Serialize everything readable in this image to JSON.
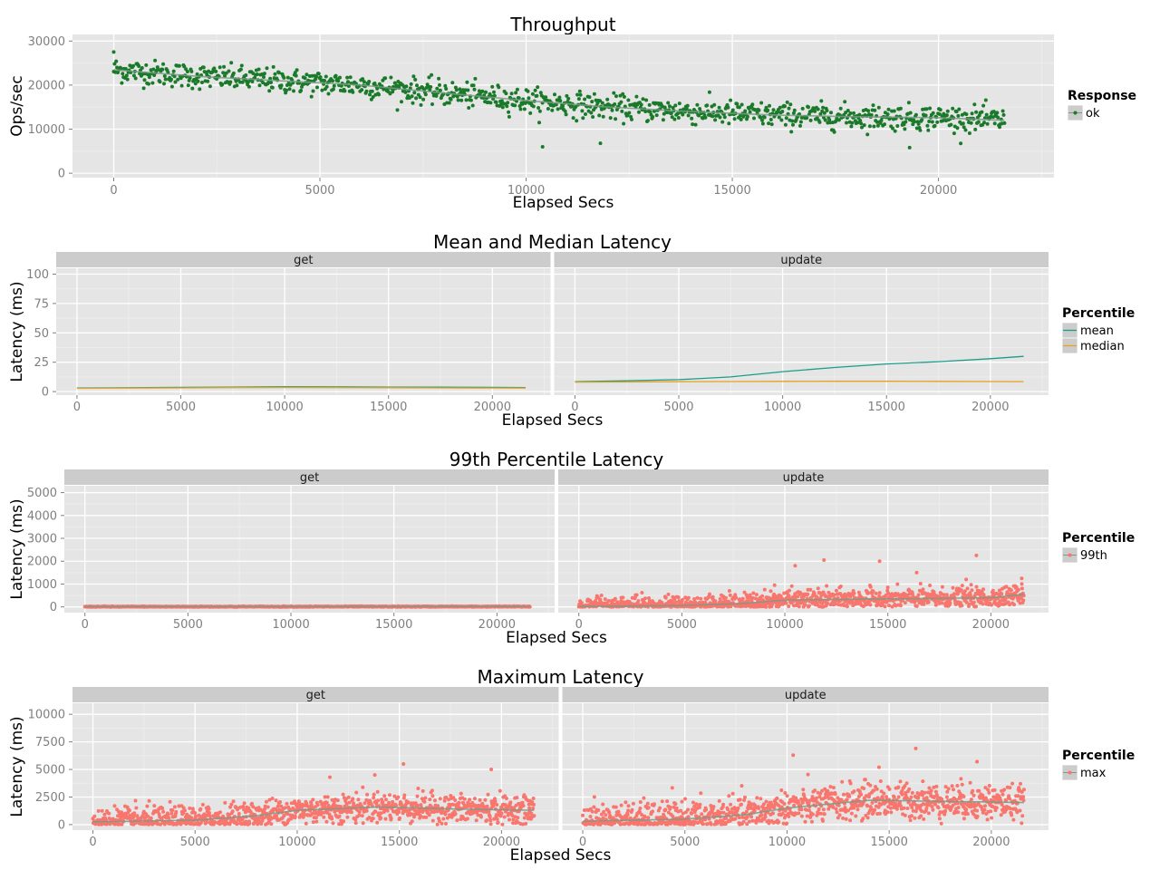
{
  "chart_data": [
    {
      "type": "scatter",
      "title": "Throughput",
      "xlabel": "Elapsed Secs",
      "ylabel": "Ops/sec",
      "xlim": [
        -1000,
        22800
      ],
      "ylim": [
        -1000,
        31500
      ],
      "x_ticks": [
        0,
        5000,
        10000,
        15000,
        20000
      ],
      "x_tick_labels": [
        "0",
        "5000",
        "10000",
        "15000",
        "20000"
      ],
      "y_ticks": [
        0,
        10000,
        20000,
        30000
      ],
      "y_tick_labels": [
        "0",
        "10000",
        "20000",
        "30000"
      ],
      "grid": true,
      "legend": {
        "title": "Response",
        "position": "right",
        "items": [
          {
            "label": "ok",
            "color": "#1a7a2a"
          }
        ]
      },
      "series": [
        {
          "name": "ok",
          "color": "#1a7a2a",
          "x_range": [
            0,
            21600
          ],
          "count": 1100,
          "trend": {
            "x": [
              0,
              2000,
              4000,
              6000,
              8000,
              10000,
              12000,
              14000,
              16000,
              18000,
              20000,
              21600
            ],
            "y": [
              23500,
              22000,
              21000,
              20000,
              18200,
              16500,
              15000,
              14000,
              13200,
              12800,
              12600,
              12000
            ]
          },
          "spread": 1400,
          "outliers": [
            {
              "x": 0,
              "y": 27500
            },
            {
              "x": 10400,
              "y": 6000
            },
            {
              "x": 11800,
              "y": 6800
            },
            {
              "x": 19300,
              "y": 5800
            }
          ]
        }
      ]
    },
    {
      "type": "line",
      "title": "Mean and Median Latency",
      "xlabel": "Elapsed Secs",
      "ylabel": "Latency (ms)",
      "facets": [
        "get",
        "update"
      ],
      "xlim": [
        -1000,
        22800
      ],
      "ylim": [
        -3,
        105
      ],
      "x_ticks": [
        0,
        5000,
        10000,
        15000,
        20000
      ],
      "x_tick_labels": [
        "0",
        "5000",
        "10000",
        "15000",
        "20000"
      ],
      "y_ticks": [
        0,
        25,
        50,
        75,
        100
      ],
      "y_tick_labels": [
        "0",
        "25",
        "50",
        "75",
        "100"
      ],
      "grid": true,
      "legend": {
        "title": "Percentile",
        "position": "right",
        "items": [
          {
            "label": "mean",
            "color": "#1a9e8a"
          },
          {
            "label": "median",
            "color": "#e8a020"
          }
        ]
      },
      "x": [
        0,
        2500,
        5000,
        7500,
        10000,
        12500,
        15000,
        17500,
        20000,
        21600
      ],
      "series": [
        {
          "facet": "get",
          "name": "mean",
          "color": "#1a9e8a",
          "values": [
            3,
            3.3,
            3.6,
            3.9,
            4.1,
            4.0,
            3.9,
            3.8,
            3.6,
            3.5
          ]
        },
        {
          "facet": "get",
          "name": "median",
          "color": "#e8a020",
          "values": [
            2.8,
            3.0,
            3.2,
            3.4,
            3.5,
            3.4,
            3.3,
            3.2,
            3.1,
            3.0
          ]
        },
        {
          "facet": "update",
          "name": "mean",
          "color": "#1a9e8a",
          "values": [
            8.5,
            9.2,
            10.2,
            12.5,
            17,
            20.5,
            23.5,
            25.5,
            28,
            30
          ]
        },
        {
          "facet": "update",
          "name": "median",
          "color": "#e8a020",
          "values": [
            8,
            8.2,
            8.4,
            8.6,
            8.7,
            8.8,
            8.8,
            8.7,
            8.6,
            8.5
          ]
        }
      ]
    },
    {
      "type": "scatter",
      "title": "99th Percentile Latency",
      "xlabel": "Elapsed Secs",
      "ylabel": "Latency (ms)",
      "facets": [
        "get",
        "update"
      ],
      "xlim": [
        -1000,
        22800
      ],
      "ylim": [
        -250,
        5300
      ],
      "x_ticks": [
        0,
        5000,
        10000,
        15000,
        20000
      ],
      "x_tick_labels": [
        "0",
        "5000",
        "10000",
        "15000",
        "20000"
      ],
      "y_ticks": [
        0,
        1000,
        2000,
        3000,
        4000,
        5000
      ],
      "y_tick_labels": [
        "0",
        "1000",
        "2000",
        "3000",
        "4000",
        "5000"
      ],
      "grid": true,
      "legend": {
        "title": "Percentile",
        "position": "right",
        "items": [
          {
            "label": "99th",
            "color": "#f8766d"
          }
        ]
      },
      "series": [
        {
          "facet": "get",
          "name": "99th",
          "color": "#f8766d",
          "x_range": [
            0,
            21600
          ],
          "count": 700,
          "trend": {
            "x": [
              0,
              21600
            ],
            "y": [
              10,
              15
            ]
          },
          "spread": 10,
          "outliers": []
        },
        {
          "facet": "update",
          "name": "99th",
          "color": "#f8766d",
          "x_range": [
            0,
            21600
          ],
          "count": 1100,
          "trend": {
            "x": [
              0,
              5000,
              8000,
              10000,
              15000,
              20000,
              21600
            ],
            "y": [
              20,
              60,
              150,
              300,
              350,
              400,
              550
            ]
          },
          "spread": 220,
          "outliers": [
            {
              "x": 10500,
              "y": 1800
            },
            {
              "x": 11900,
              "y": 2050
            },
            {
              "x": 14600,
              "y": 2000
            },
            {
              "x": 19300,
              "y": 2250
            },
            {
              "x": 21500,
              "y": 1250
            },
            {
              "x": 9500,
              "y": 950
            },
            {
              "x": 16400,
              "y": 1500
            },
            {
              "x": 18800,
              "y": 1200
            }
          ]
        }
      ]
    },
    {
      "type": "scatter",
      "title": "Maximum Latency",
      "xlabel": "Elapsed Secs",
      "ylabel": "Latency (ms)",
      "facets": [
        "get",
        "update"
      ],
      "xlim": [
        -1000,
        22800
      ],
      "ylim": [
        -500,
        11000
      ],
      "x_ticks": [
        0,
        5000,
        10000,
        15000,
        20000
      ],
      "x_tick_labels": [
        "0",
        "5000",
        "10000",
        "15000",
        "20000"
      ],
      "y_ticks": [
        0,
        2500,
        5000,
        7500,
        10000
      ],
      "y_tick_labels": [
        "0",
        "2500",
        "5000",
        "7500",
        "10000"
      ],
      "grid": true,
      "legend": {
        "title": "Percentile",
        "position": "right",
        "items": [
          {
            "label": "max",
            "color": "#f8766d"
          }
        ]
      },
      "series": [
        {
          "facet": "get",
          "name": "max",
          "color": "#f8766d",
          "x_range": [
            0,
            21600
          ],
          "count": 1100,
          "trend": {
            "x": [
              0,
              5000,
              8000,
              10000,
              14000,
              18000,
              21600
            ],
            "y": [
              250,
              400,
              800,
              1300,
              1600,
              1400,
              1300
            ]
          },
          "spread": 650,
          "outliers": [
            {
              "x": 15200,
              "y": 5500
            },
            {
              "x": 19500,
              "y": 5000
            },
            {
              "x": 11600,
              "y": 4300
            },
            {
              "x": 13800,
              "y": 4500
            }
          ]
        },
        {
          "facet": "update",
          "name": "max",
          "color": "#f8766d",
          "x_range": [
            0,
            21600
          ],
          "count": 1100,
          "trend": {
            "x": [
              0,
              5000,
              8000,
              10000,
              14000,
              18000,
              21600
            ],
            "y": [
              300,
              500,
              900,
              1500,
              2200,
              2100,
              2000
            ]
          },
          "spread": 800,
          "outliers": [
            {
              "x": 10300,
              "y": 6300
            },
            {
              "x": 16300,
              "y": 6900
            },
            {
              "x": 19300,
              "y": 5700
            },
            {
              "x": 14500,
              "y": 5200
            }
          ]
        }
      ]
    }
  ],
  "theme": {
    "panel_bg": "#e5e5e5",
    "strip_bg": "#cccccc",
    "grid_major": "#ffffff",
    "grid_minor": "#ededed",
    "tick_text": "#7f7f7f",
    "text": "#000000"
  }
}
